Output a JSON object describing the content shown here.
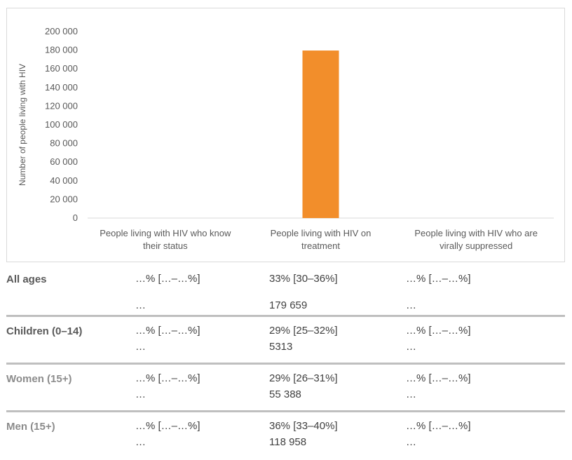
{
  "colors": {
    "bar": "#F28E2B",
    "grid": "#d9d9d9",
    "row_label_1": "#595959",
    "row_label_2": "#8c8c8c"
  },
  "chart_data": {
    "type": "bar",
    "categories": [
      "People living with HIV who know their status",
      "People living with HIV on treatment",
      "People living with HIV who are virally suppressed"
    ],
    "category_lines": [
      [
        "People living with HIV who know",
        "their status"
      ],
      [
        "People living with HIV on",
        "treatment"
      ],
      [
        "People living with HIV who are",
        "virally suppressed"
      ]
    ],
    "values": [
      null,
      179659,
      null
    ],
    "ylabel": "Number of people living with HIV",
    "ylim": [
      0,
      200000
    ],
    "yticks": [
      0,
      20000,
      40000,
      60000,
      80000,
      100000,
      120000,
      140000,
      160000,
      180000,
      200000
    ],
    "ytick_labels": [
      "0",
      "20 000",
      "40 000",
      "60 000",
      "80 000",
      "100 000",
      "120 000",
      "140 000",
      "160 000",
      "180 000",
      "200 000"
    ],
    "grid": false
  },
  "table": {
    "rows": [
      {
        "label": "All ages",
        "know_pct": "…% […–…%]",
        "know_num": "…",
        "treat_pct": "33% [30–36%]",
        "treat_num": "179 659",
        "supp_pct": "…% […–…%]",
        "supp_num": "…"
      },
      {
        "label": "Children (0–14)",
        "know_pct": "…% […–…%]",
        "know_num": "…",
        "treat_pct": "29% [25–32%]",
        "treat_num": "5313",
        "supp_pct": "…% […–…%]",
        "supp_num": "…"
      },
      {
        "label": "Women (15+)",
        "know_pct": "…% […–…%]",
        "know_num": "…",
        "treat_pct": "29% [26–31%]",
        "treat_num": "55 388",
        "supp_pct": "…% […–…%]",
        "supp_num": "…"
      },
      {
        "label": "Men (15+)",
        "know_pct": "…% […–…%]",
        "know_num": "…",
        "treat_pct": "36% [33–40%]",
        "treat_num": "118 958",
        "supp_pct": "…% […–…%]",
        "supp_num": "…"
      }
    ]
  }
}
